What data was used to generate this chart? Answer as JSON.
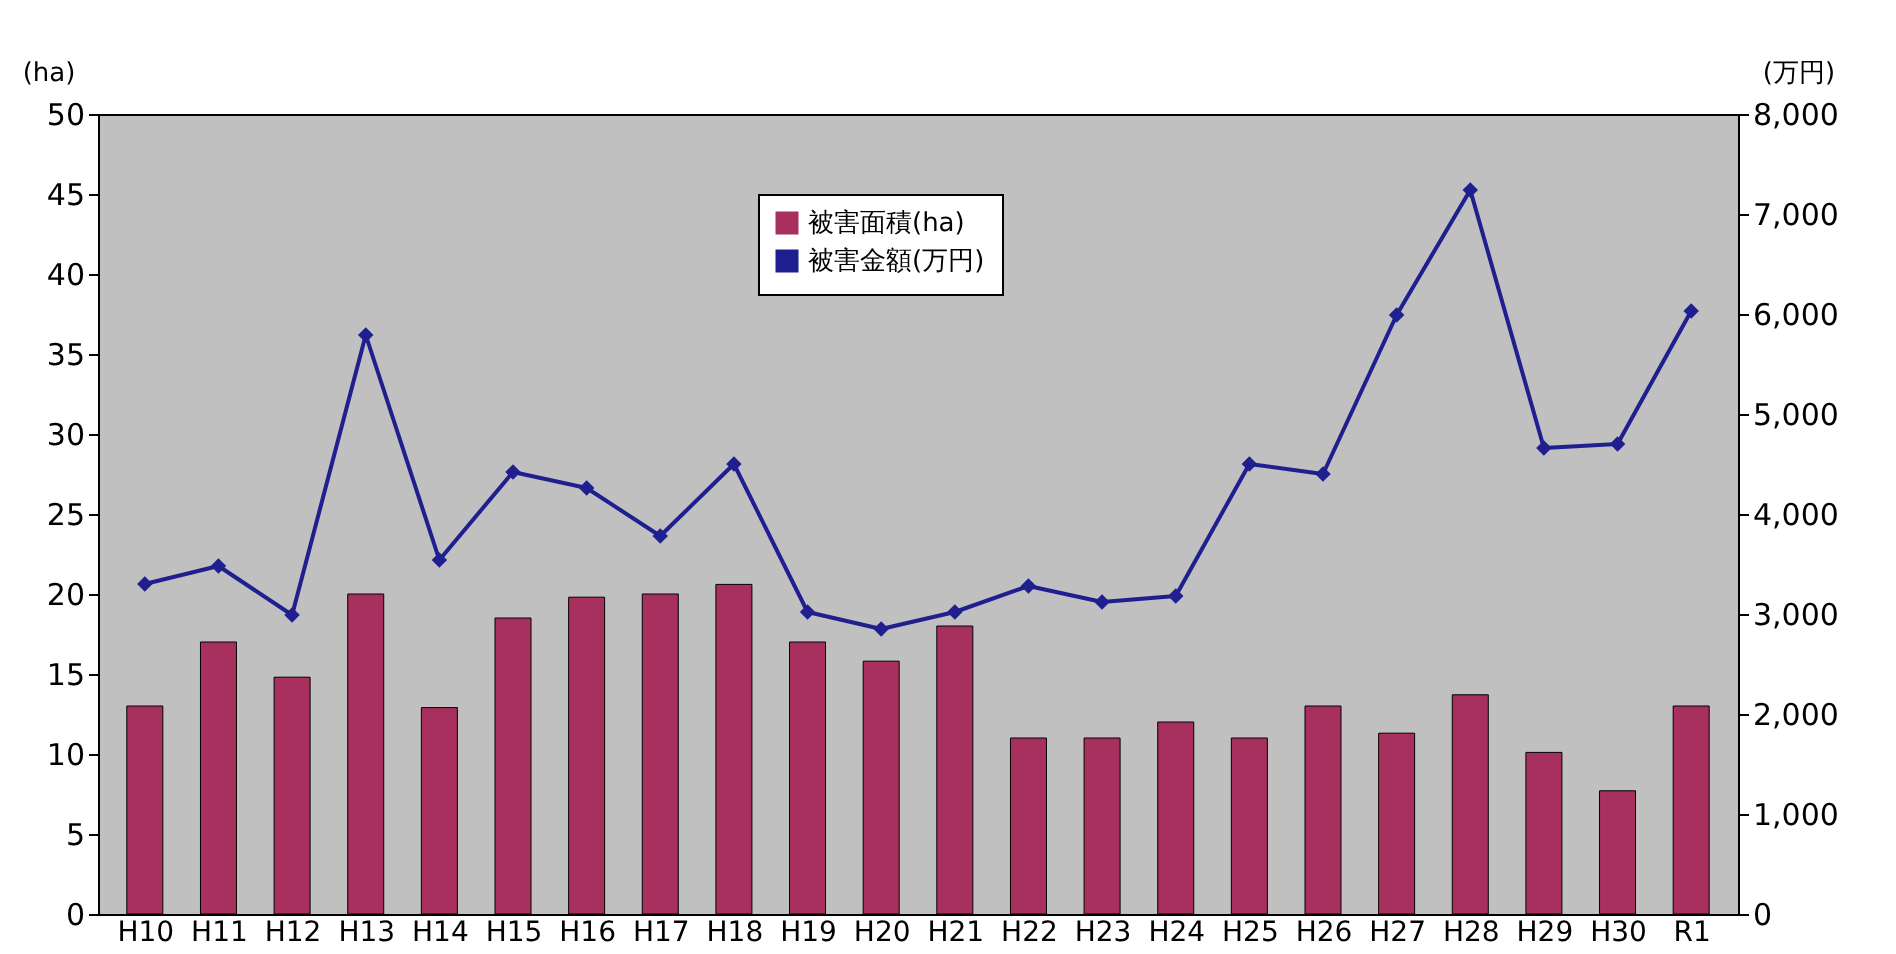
{
  "chart_data": {
    "type": "bar",
    "ylabel": "(ha)",
    "y2label": "(万円)",
    "categories": [
      "H10",
      "H11",
      "H12",
      "H13",
      "H14",
      "H15",
      "H16",
      "H17",
      "H18",
      "H19",
      "H20",
      "H21",
      "H22",
      "H23",
      "H24",
      "H25",
      "H26",
      "H27",
      "H28",
      "H29",
      "H30",
      "R1"
    ],
    "series": [
      {
        "name": "被害面積(ha)",
        "color": "#a8305f",
        "values": [
          13,
          17,
          14.8,
          20,
          12.9,
          18.5,
          19.8,
          20,
          20.6,
          17,
          15.8,
          18,
          11,
          11,
          12,
          11,
          13,
          11.3,
          13.7,
          10.1,
          7.7,
          13
        ]
      },
      {
        "name": "被害金額(万円)",
        "type": "line",
        "axis": "y2",
        "color": "#1f1f8f",
        "marker": "diamond",
        "values": [
          3300,
          3480,
          2990,
          5790,
          3540,
          4420,
          4260,
          3780,
          4500,
          3020,
          2850,
          3020,
          3280,
          3120,
          3180,
          4500,
          4400,
          5990,
          7240,
          4660,
          4700,
          6030
        ]
      }
    ],
    "ylim": [
      0,
      50
    ],
    "yticks": [
      0,
      5,
      10,
      15,
      20,
      25,
      30,
      35,
      40,
      45,
      50
    ],
    "y2lim": [
      0,
      8000
    ],
    "y2ticks": [
      0,
      {
        "value": 1000,
        "label": "1,000"
      },
      {
        "value": 2000,
        "label": "2,000"
      },
      {
        "value": 3000,
        "label": "3,000"
      },
      {
        "value": 4000,
        "label": "4,000"
      },
      {
        "value": 5000,
        "label": "5,000"
      },
      {
        "value": 6000,
        "label": "6,000"
      },
      {
        "value": 7000,
        "label": "7,000"
      },
      {
        "value": 8000,
        "label": "8,000"
      }
    ],
    "grid": false,
    "legend": "top"
  }
}
